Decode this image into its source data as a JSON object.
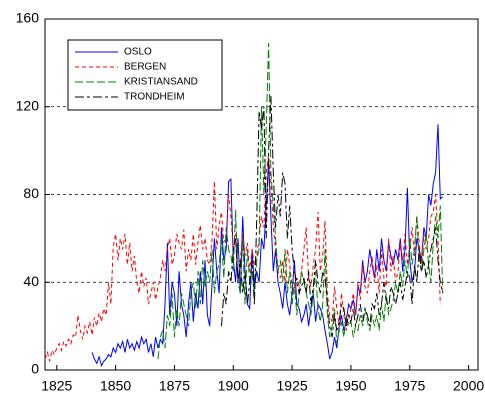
{
  "chart_data": {
    "type": "line",
    "x": [
      1820,
      1821,
      1822,
      1823,
      1824,
      1825,
      1826,
      1827,
      1828,
      1829,
      1830,
      1831,
      1832,
      1833,
      1834,
      1835,
      1836,
      1837,
      1838,
      1839,
      1840,
      1841,
      1842,
      1843,
      1844,
      1845,
      1846,
      1847,
      1848,
      1849,
      1850,
      1851,
      1852,
      1853,
      1854,
      1855,
      1856,
      1857,
      1858,
      1859,
      1860,
      1861,
      1862,
      1863,
      1864,
      1865,
      1866,
      1867,
      1868,
      1869,
      1870,
      1871,
      1872,
      1873,
      1874,
      1875,
      1876,
      1877,
      1878,
      1879,
      1880,
      1881,
      1882,
      1883,
      1884,
      1885,
      1886,
      1887,
      1888,
      1889,
      1890,
      1891,
      1892,
      1893,
      1894,
      1895,
      1896,
      1897,
      1898,
      1899,
      1900,
      1901,
      1902,
      1903,
      1904,
      1905,
      1906,
      1907,
      1908,
      1909,
      1910,
      1911,
      1912,
      1913,
      1914,
      1915,
      1916,
      1917,
      1918,
      1919,
      1920,
      1921,
      1922,
      1923,
      1924,
      1925,
      1926,
      1927,
      1928,
      1929,
      1930,
      1931,
      1932,
      1933,
      1934,
      1935,
      1936,
      1937,
      1938,
      1939,
      1940,
      1941,
      1942,
      1943,
      1944,
      1945,
      1946,
      1947,
      1948,
      1949,
      1950,
      1951,
      1952,
      1953,
      1954,
      1955,
      1956,
      1957,
      1958,
      1959,
      1960,
      1961,
      1962,
      1963,
      1964,
      1965,
      1966,
      1967,
      1968,
      1969,
      1970,
      1971,
      1972,
      1973,
      1974,
      1975,
      1976,
      1977,
      1978,
      1979,
      1980,
      1981,
      1982,
      1983,
      1984,
      1985,
      1986,
      1987,
      1988,
      1989
    ],
    "series": [
      {
        "name": "OSLO",
        "color": "#0000ff",
        "values": [
          null,
          null,
          null,
          null,
          null,
          null,
          null,
          null,
          null,
          null,
          null,
          null,
          null,
          null,
          null,
          null,
          null,
          null,
          null,
          null,
          8,
          5,
          3,
          6,
          2,
          4,
          5,
          7,
          6,
          10,
          8,
          12,
          10,
          13,
          8,
          14,
          10,
          12,
          9,
          13,
          10,
          15,
          12,
          14,
          8,
          12,
          6,
          15,
          10,
          14,
          12,
          30,
          58,
          25,
          40,
          35,
          20,
          45,
          30,
          25,
          15,
          30,
          40,
          22,
          35,
          28,
          45,
          30,
          50,
          25,
          20,
          40,
          60,
          45,
          35,
          65,
          50,
          55,
          86,
          87,
          50,
          40,
          60,
          35,
          70,
          45,
          30,
          28,
          55,
          38,
          45,
          40,
          60,
          55,
          75,
          95,
          70,
          45,
          55,
          40,
          35,
          28,
          40,
          30,
          25,
          35,
          50,
          30,
          28,
          22,
          25,
          30,
          20,
          28,
          35,
          22,
          30,
          28,
          25,
          18,
          12,
          5,
          8,
          15,
          10,
          20,
          25,
          18,
          22,
          30,
          28,
          32,
          25,
          38,
          35,
          50,
          40,
          45,
          55,
          48,
          42,
          55,
          45,
          60,
          50,
          45,
          58,
          52,
          48,
          55,
          50,
          60,
          45,
          55,
          83,
          50,
          40,
          45,
          60,
          55,
          50,
          65,
          60,
          80,
          75,
          85,
          90,
          112,
          78,
          79
        ]
      },
      {
        "name": "BERGEN",
        "color": "#ff0000",
        "values": [
          5,
          8,
          4,
          9,
          7,
          10,
          12,
          9,
          13,
          11,
          14,
          12,
          16,
          15,
          25,
          18,
          14,
          20,
          17,
          22,
          16,
          24,
          20,
          26,
          22,
          28,
          25,
          40,
          30,
          56,
          62,
          50,
          60,
          55,
          62,
          48,
          58,
          45,
          52,
          40,
          35,
          45,
          38,
          42,
          30,
          35,
          40,
          32,
          38,
          42,
          50,
          45,
          55,
          60,
          48,
          52,
          62,
          58,
          55,
          64,
          45,
          55,
          50,
          62,
          48,
          58,
          66,
          55,
          60,
          50,
          48,
          60,
          86,
          55,
          66,
          72,
          58,
          62,
          80,
          70,
          55,
          62,
          40,
          50,
          62,
          52,
          58,
          45,
          55,
          48,
          52,
          60,
          70,
          65,
          90,
          98,
          85,
          65,
          55,
          45,
          42,
          50,
          40,
          55,
          48,
          38,
          35,
          42,
          38,
          45,
          55,
          65,
          42,
          38,
          48,
          55,
          72,
          45,
          52,
          68,
          35,
          25,
          22,
          38,
          28,
          20,
          35,
          25,
          18,
          22,
          28,
          35,
          25,
          40,
          32,
          48,
          38,
          35,
          45,
          52,
          40,
          48,
          35,
          55,
          42,
          38,
          60,
          45,
          52,
          40,
          45,
          58,
          50,
          62,
          48,
          55,
          65,
          52,
          70,
          58,
          48,
          62,
          55,
          60,
          70,
          72,
          80,
          60,
          30,
          null
        ]
      },
      {
        "name": "KRISTIANSAND",
        "color": "#008000",
        "values": [
          null,
          null,
          null,
          null,
          null,
          null,
          null,
          null,
          null,
          null,
          null,
          null,
          null,
          null,
          null,
          null,
          null,
          null,
          null,
          null,
          null,
          null,
          null,
          null,
          null,
          null,
          null,
          null,
          null,
          null,
          null,
          null,
          null,
          null,
          null,
          null,
          null,
          null,
          null,
          null,
          null,
          null,
          null,
          null,
          null,
          null,
          null,
          null,
          5,
          15,
          18,
          10,
          25,
          20,
          35,
          15,
          28,
          20,
          35,
          30,
          25,
          20,
          35,
          40,
          28,
          45,
          30,
          50,
          38,
          45,
          40,
          55,
          35,
          45,
          48,
          60,
          42,
          65,
          55,
          52,
          45,
          73,
          40,
          35,
          60,
          30,
          55,
          40,
          45,
          35,
          50,
          55,
          120,
          80,
          110,
          149,
          90,
          75,
          60,
          45,
          50,
          40,
          55,
          35,
          45,
          30,
          40,
          25,
          35,
          45,
          40,
          35,
          30,
          25,
          35,
          45,
          28,
          22,
          30,
          55,
          25,
          15,
          20,
          28,
          12,
          18,
          22,
          15,
          25,
          20,
          22,
          15,
          20,
          18,
          25,
          20,
          28,
          22,
          18,
          25,
          20,
          25,
          18,
          30,
          22,
          35,
          25,
          28,
          32,
          40,
          35,
          45,
          38,
          50,
          42,
          60,
          48,
          55,
          70,
          50,
          45,
          55,
          62,
          48,
          40,
          58,
          70,
          60,
          75,
          35
        ]
      },
      {
        "name": "TRONDHEIM",
        "color": "#000000",
        "values": [
          null,
          null,
          null,
          null,
          null,
          null,
          null,
          null,
          null,
          null,
          null,
          null,
          null,
          null,
          null,
          null,
          null,
          null,
          null,
          null,
          null,
          null,
          null,
          null,
          null,
          null,
          null,
          null,
          null,
          null,
          null,
          null,
          null,
          null,
          null,
          null,
          null,
          null,
          null,
          null,
          null,
          null,
          null,
          null,
          null,
          null,
          null,
          null,
          null,
          null,
          null,
          null,
          null,
          null,
          null,
          null,
          null,
          null,
          null,
          null,
          null,
          null,
          null,
          null,
          null,
          null,
          null,
          null,
          null,
          null,
          null,
          null,
          null,
          null,
          null,
          20,
          35,
          30,
          45,
          40,
          55,
          60,
          40,
          50,
          35,
          45,
          30,
          40,
          50,
          30,
          70,
          118,
          110,
          120,
          60,
          100,
          125,
          90,
          65,
          80,
          70,
          90,
          85,
          60,
          75,
          55,
          45,
          40,
          35,
          38,
          42,
          35,
          45,
          30,
          38,
          50,
          40,
          35,
          45,
          42,
          30,
          20,
          15,
          25,
          18,
          22,
          30,
          28,
          20,
          25,
          22,
          28,
          20,
          25,
          30,
          22,
          28,
          25,
          20,
          30,
          28,
          35,
          25,
          30,
          40,
          32,
          28,
          38,
          35,
          30,
          35,
          40,
          32,
          38,
          45,
          42,
          30,
          48,
          40,
          55,
          45,
          50,
          42,
          48,
          55,
          60,
          65,
          50,
          40,
          35
        ]
      }
    ],
    "xlim": [
      1820,
      2004
    ],
    "xticks": [
      1825,
      1850,
      1875,
      1900,
      1925,
      1950,
      1975,
      2000
    ],
    "ylim": [
      0,
      160
    ],
    "yticks": [
      0,
      40,
      80,
      120,
      160
    ],
    "grid": true,
    "legend": "upper left"
  }
}
